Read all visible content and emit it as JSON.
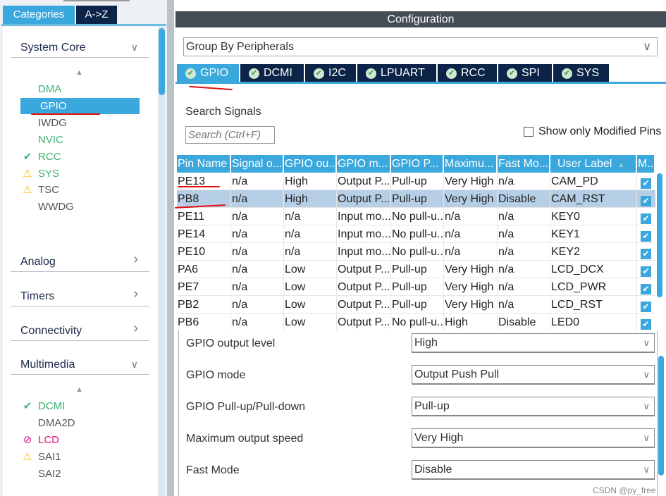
{
  "left": {
    "tabs": [
      "Categories",
      "A->Z"
    ],
    "categories": [
      {
        "label": "System Core",
        "state": "expanded"
      },
      {
        "label": "Analog",
        "state": "collapsed"
      },
      {
        "label": "Timers",
        "state": "collapsed"
      },
      {
        "label": "Connectivity",
        "state": "collapsed"
      },
      {
        "label": "Multimedia",
        "state": "expanded"
      }
    ],
    "system_core_items": [
      {
        "label": "DMA",
        "color": "green",
        "icon": ""
      },
      {
        "label": "GPIO",
        "color": "selected",
        "icon": ""
      },
      {
        "label": "IWDG",
        "color": "default",
        "icon": ""
      },
      {
        "label": "NVIC",
        "color": "green",
        "icon": ""
      },
      {
        "label": "RCC",
        "color": "green",
        "icon": "check-icon"
      },
      {
        "label": "SYS",
        "color": "green",
        "icon": "warning-icon"
      },
      {
        "label": "TSC",
        "color": "default",
        "icon": "warning-icon"
      },
      {
        "label": "WWDG",
        "color": "default",
        "icon": ""
      }
    ],
    "multimedia_items": [
      {
        "label": "DCMI",
        "color": "green",
        "icon": "check-icon"
      },
      {
        "label": "DMA2D",
        "color": "default",
        "icon": ""
      },
      {
        "label": "LCD",
        "color": "pink",
        "icon": "forbidden-icon"
      },
      {
        "label": "SAI1",
        "color": "default",
        "icon": "warning-icon"
      },
      {
        "label": "SAI2",
        "color": "default",
        "icon": ""
      }
    ]
  },
  "config": {
    "title": "Configuration",
    "group_by": "Group By Peripherals",
    "tabs": [
      "GPIO",
      "DCMI",
      "I2C",
      "LPUART",
      "RCC",
      "SPI",
      "SYS"
    ],
    "active_tab": "GPIO",
    "search_label": "Search Signals",
    "search_placeholder": "Search (Ctrl+F)",
    "show_modified": "Show only Modified Pins",
    "show_modified_checked": false,
    "columns": [
      "Pin Name",
      "Signal o...",
      "GPIO ou...",
      "GPIO m...",
      "GPIO P...",
      "Maximu...",
      "Fast Mo...",
      "User Label",
      "M..."
    ],
    "rows": [
      [
        "PE13",
        "n/a",
        "High",
        "Output P...",
        "Pull-up",
        "Very High",
        "n/a",
        "CAM_PD"
      ],
      [
        "PB8",
        "n/a",
        "High",
        "Output P...",
        "Pull-up",
        "Very High",
        "Disable",
        "CAM_RST"
      ],
      [
        "PE11",
        "n/a",
        "n/a",
        "Input mo...",
        "No pull-u...",
        "n/a",
        "n/a",
        "KEY0"
      ],
      [
        "PE14",
        "n/a",
        "n/a",
        "Input mo...",
        "No pull-u...",
        "n/a",
        "n/a",
        "KEY1"
      ],
      [
        "PE10",
        "n/a",
        "n/a",
        "Input mo...",
        "No pull-u...",
        "n/a",
        "n/a",
        "KEY2"
      ],
      [
        "PA6",
        "n/a",
        "Low",
        "Output P...",
        "Pull-up",
        "Very High",
        "n/a",
        "LCD_DCX"
      ],
      [
        "PE7",
        "n/a",
        "Low",
        "Output P...",
        "Pull-up",
        "Very High",
        "n/a",
        "LCD_PWR"
      ],
      [
        "PB2",
        "n/a",
        "Low",
        "Output P...",
        "Pull-up",
        "Very High",
        "n/a",
        "LCD_RST"
      ],
      [
        "PB6",
        "n/a",
        "Low",
        "Output P...",
        "No pull-u...",
        "High",
        "Disable",
        "LED0"
      ]
    ],
    "selected_row": 1,
    "settings": [
      {
        "label": "GPIO output level",
        "value": "High"
      },
      {
        "label": "GPIO mode",
        "value": "Output Push Pull"
      },
      {
        "label": "GPIO Pull-up/Pull-down",
        "value": "Pull-up"
      },
      {
        "label": "Maximum output speed",
        "value": "Very High"
      },
      {
        "label": "Fast Mode",
        "value": "Disable"
      }
    ]
  },
  "watermark": "CSDN @py_free",
  "colors": {
    "accent": "#3aa8dc",
    "navy": "#0b2447",
    "green": "#3cb371",
    "pink": "#e0157a",
    "warning": "#f5c400",
    "annotation": "#e01010"
  }
}
